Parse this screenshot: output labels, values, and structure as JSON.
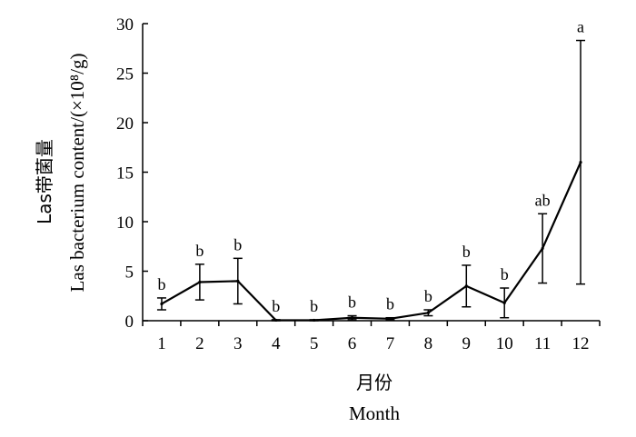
{
  "chart_data": {
    "type": "line",
    "title": "",
    "x_title_cn": "月份",
    "xlabel": "Month",
    "y_title_cn": "Las带菌量",
    "ylabel": "Las bacterium content/(×10⁸/g)",
    "ylim": [
      0,
      30
    ],
    "yticks": [
      "0",
      "5",
      "10",
      "15",
      "20",
      "25",
      "30"
    ],
    "categories": [
      "1",
      "2",
      "3",
      "4",
      "5",
      "6",
      "7",
      "8",
      "9",
      "10",
      "11",
      "12"
    ],
    "series": [
      {
        "values": [
          1.7,
          3.9,
          4.0,
          0.05,
          0.05,
          0.3,
          0.2,
          0.8,
          3.5,
          1.8,
          7.3,
          16.0
        ],
        "error": [
          0.6,
          1.8,
          2.3,
          0.05,
          0.05,
          0.2,
          0.1,
          0.3,
          2.1,
          1.5,
          3.5,
          12.3
        ],
        "significance": [
          "b",
          "b",
          "b",
          "b",
          "b",
          "b",
          "b",
          "b",
          "b",
          "b",
          "ab",
          "a"
        ]
      }
    ],
    "grid": false,
    "legend": "none"
  }
}
